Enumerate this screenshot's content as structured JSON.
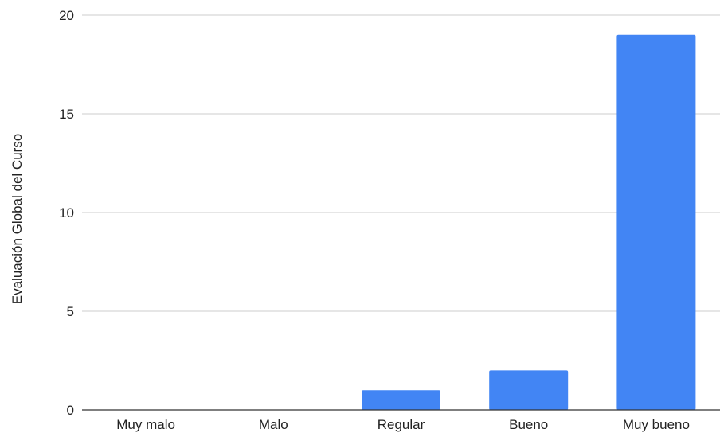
{
  "chart_data": {
    "type": "bar",
    "title": "",
    "xlabel": "",
    "ylabel": "Evaluación Global del Curso",
    "categories": [
      "Muy malo",
      "Malo",
      "Regular",
      "Bueno",
      "Muy bueno"
    ],
    "values": [
      0,
      0,
      1,
      2,
      19
    ],
    "ylim": [
      0,
      20
    ],
    "yticks": [
      0,
      5,
      10,
      15,
      20
    ],
    "grid": true,
    "legend": "none",
    "colors": {
      "bar": "#4285f4",
      "grid": "#cccccc",
      "axis": "#333333",
      "text": "#222222"
    }
  }
}
